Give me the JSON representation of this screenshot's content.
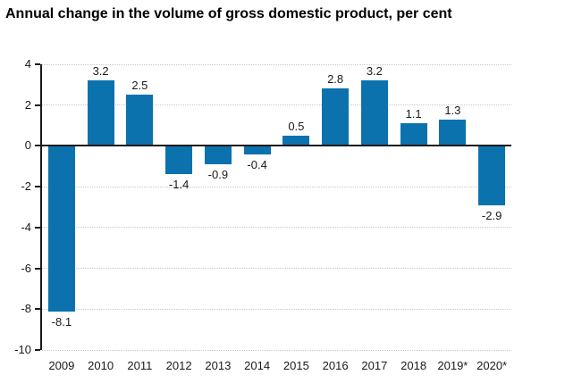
{
  "title": "Annual change in the volume of gross domestic product, per cent",
  "chart_data": {
    "type": "bar",
    "title": "Annual change in the volume of gross domestic product, per cent",
    "categories": [
      "2009",
      "2010",
      "2011",
      "2012",
      "2013",
      "2014",
      "2015",
      "2016",
      "2017",
      "2018",
      "2019*",
      "2020*"
    ],
    "values": [
      -8.1,
      3.2,
      2.5,
      -1.4,
      -0.9,
      -0.4,
      0.5,
      2.8,
      3.2,
      1.1,
      1.3,
      -2.9
    ],
    "value_labels": [
      "-8.1",
      "3.2",
      "2.5",
      "-1.4",
      "-0.9",
      "-0.4",
      "0.5",
      "2.8",
      "3.2",
      "1.1",
      "1.3",
      "-2.9"
    ],
    "xlabel": "",
    "ylabel": "",
    "ylim": [
      -10,
      4
    ],
    "yticks": [
      4,
      2,
      0,
      -2,
      -4,
      -6,
      -8,
      -10
    ],
    "grid": true,
    "legend": false,
    "bar_color": "#0b72ad"
  },
  "colors": {
    "bar": "#0b72ad",
    "grid": "#c9c9c9",
    "axis": "#1a1a1a",
    "title": "#000000",
    "label_text": "#1a1a1a"
  }
}
